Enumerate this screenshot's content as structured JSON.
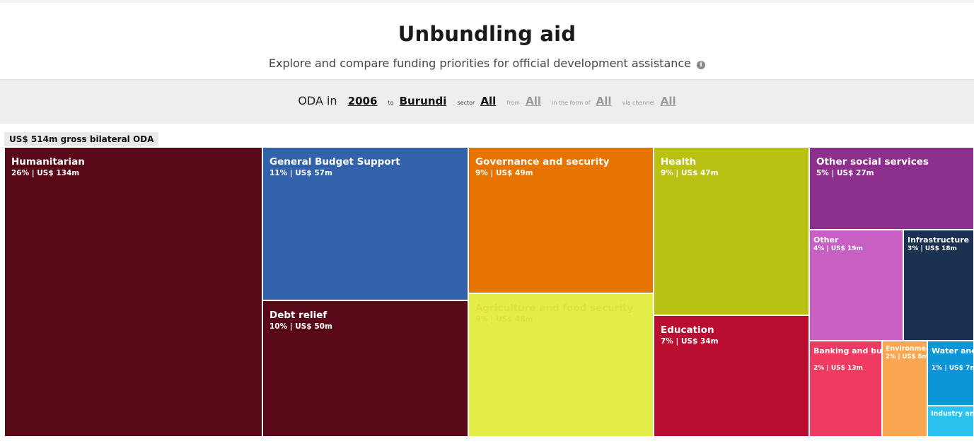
{
  "header": {
    "title": "Unbundling aid",
    "subtitle": "Explore and compare funding priorities for official development assistance",
    "info_icon": "info-icon"
  },
  "filters": {
    "lead": "ODA in",
    "year": "2006",
    "to_label": "to",
    "recipient": "Burundi",
    "sector_label": "sector",
    "sector": "All",
    "from_label": "from",
    "donor": "All",
    "form_label": "in the form of",
    "form": "All",
    "channel_label": "via channel",
    "channel": "All"
  },
  "total_label": "US$ 514m gross bilateral ODA",
  "chart_data": {
    "type": "treemap",
    "total": "US$ 514m gross bilateral ODA",
    "unit": "US$ m",
    "items": [
      {
        "name": "Humanitarian",
        "share": "26%",
        "value": 134,
        "value_label": "26% | US$ 134m",
        "color": "#580817"
      },
      {
        "name": "General Budget Support",
        "share": "11%",
        "value": 57,
        "value_label": "11% | US$ 57m",
        "color": "#3162aa"
      },
      {
        "name": "Debt relief",
        "share": "10%",
        "value": 50,
        "value_label": "10% | US$ 50m",
        "color": "#580817"
      },
      {
        "name": "Governance and security",
        "share": "9%",
        "value": 49,
        "value_label": "9% | US$ 49m",
        "color": "#e87400"
      },
      {
        "name": "Agriculture and food security",
        "share": "9%",
        "value": 48,
        "value_label": "9% | US$ 48m",
        "color": "#e5ee48"
      },
      {
        "name": "Health",
        "share": "9%",
        "value": 47,
        "value_label": "9% | US$ 47m",
        "color": "#b9c112"
      },
      {
        "name": "Education",
        "share": "7%",
        "value": 34,
        "value_label": "7% | US$ 34m",
        "color": "#ba0e31"
      },
      {
        "name": "Other social services",
        "share": "5%",
        "value": 27,
        "value_label": "5% | US$ 27m",
        "color": "#8d2f8c"
      },
      {
        "name": "Other",
        "share": "4%",
        "value": 19,
        "value_label": "4% | US$ 19m",
        "color": "#c760c2"
      },
      {
        "name": "Infrastructure",
        "share": "3%",
        "value": 18,
        "value_label": "3% | US$ 18m",
        "color": "#1b3152"
      },
      {
        "name": "Banking and business",
        "share": "2%",
        "value": 13,
        "value_label": "2% | US$ 13m",
        "color": "#ef3a62"
      },
      {
        "name": "Environmen",
        "share": "2%",
        "value": 8,
        "value_label": "2% | US$ 8m",
        "color": "#fba651"
      },
      {
        "name": "Water and sanitation",
        "share": "1%",
        "value": 7,
        "value_label": "1% | US$ 7m",
        "color": "#0c96d7"
      },
      {
        "name": "Industry and t",
        "value_label": "",
        "color": "#2bc2f0"
      }
    ]
  }
}
